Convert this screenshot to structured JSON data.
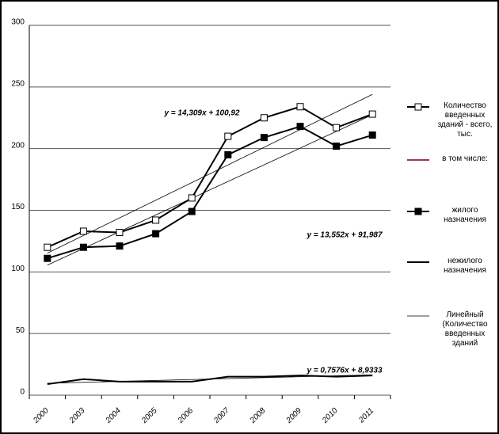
{
  "chart_data": {
    "type": "line",
    "categories": [
      "2000",
      "2003",
      "2004",
      "2005",
      "2006",
      "2007",
      "2008",
      "2009",
      "2010",
      "2011"
    ],
    "ylim": [
      0,
      300
    ],
    "yticks": [
      0,
      50,
      100,
      150,
      200,
      250,
      300
    ],
    "grid": true,
    "series": [
      {
        "name": "Количество введенных зданий - всего, тыс.",
        "color": "#000000",
        "marker": "open-square",
        "values": [
          120,
          133,
          132,
          142,
          160,
          210,
          225,
          234,
          217,
          228
        ]
      },
      {
        "name": "в том числе:",
        "color": "#a0306a",
        "marker": "none",
        "values": [
          null,
          null,
          null,
          null,
          null,
          null,
          null,
          null,
          null,
          null
        ]
      },
      {
        "name": "жилого назначения",
        "color": "#000000",
        "marker": "filled-square",
        "values": [
          111,
          120,
          121,
          131,
          149,
          195,
          209,
          218,
          202,
          211
        ]
      },
      {
        "name": "нежилого назначения",
        "color": "#000000",
        "marker": "none",
        "values": [
          9,
          13,
          11,
          11,
          11,
          15,
          15,
          16,
          15,
          16
        ]
      }
    ],
    "trendlines": [
      {
        "name": "Линейный (Количество введенных зданий",
        "label": "y = 14,309x + 100,92",
        "slope": 14.309,
        "intercept": 100.92
      },
      {
        "label": "y = 13,552x + 91,987",
        "slope": 13.552,
        "intercept": 91.987
      },
      {
        "label": "y = 0,7576x + 8,9333",
        "slope": 0.7576,
        "intercept": 8.9333
      }
    ]
  }
}
